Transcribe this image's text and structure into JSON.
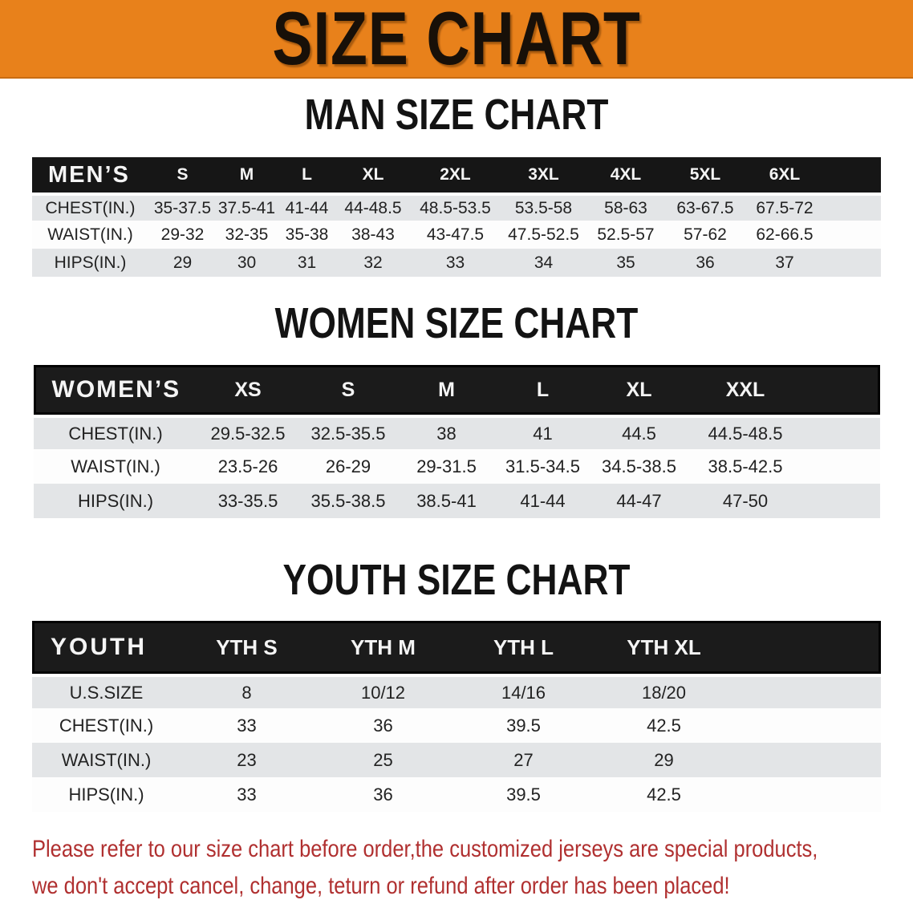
{
  "banner": {
    "title": "SIZE CHART",
    "bg_color": "#E8811B"
  },
  "sections": [
    {
      "heading": "MAN SIZE CHART",
      "table": {
        "corner": "MEN’S",
        "columns": [
          "S",
          "M",
          "L",
          "XL",
          "2XL",
          "3XL",
          "4XL",
          "5XL",
          "6XL"
        ],
        "rows": [
          {
            "label": "CHEST(IN.)",
            "values": [
              "35-37.5",
              "37.5-41",
              "41-44",
              "44-48.5",
              "48.5-53.5",
              "53.5-58",
              "58-63",
              "63-67.5",
              "67.5-72"
            ]
          },
          {
            "label": "WAIST(IN.)",
            "values": [
              "29-32",
              "32-35",
              "35-38",
              "38-43",
              "43-47.5",
              "47.5-52.5",
              "52.5-57",
              "57-62",
              "62-66.5"
            ]
          },
          {
            "label": "HIPS(IN.)",
            "values": [
              "29",
              "30",
              "31",
              "32",
              "33",
              "34",
              "35",
              "36",
              "37"
            ]
          }
        ]
      }
    },
    {
      "heading": "WOMEN SIZE CHART",
      "table": {
        "corner": "WOMEN’S",
        "columns": [
          "XS",
          "S",
          "M",
          "L",
          "XL",
          "XXL"
        ],
        "rows": [
          {
            "label": "CHEST(IN.)",
            "values": [
              "29.5-32.5",
              "32.5-35.5",
              "38",
              "41",
              "44.5",
              "44.5-48.5"
            ]
          },
          {
            "label": "WAIST(IN.)",
            "values": [
              "23.5-26",
              "26-29",
              "29-31.5",
              "31.5-34.5",
              "34.5-38.5",
              "38.5-42.5"
            ]
          },
          {
            "label": "HIPS(IN.)",
            "values": [
              "33-35.5",
              "35.5-38.5",
              "38.5-41",
              "41-44",
              "44-47",
              "47-50"
            ]
          }
        ]
      }
    },
    {
      "heading": "YOUTH SIZE CHART",
      "table": {
        "corner": "YOUTH",
        "columns": [
          "YTH S",
          "YTH M",
          "YTH L",
          "YTH XL"
        ],
        "rows": [
          {
            "label": "U.S.SIZE",
            "values": [
              "8",
              "10/12",
              "14/16",
              "18/20"
            ]
          },
          {
            "label": "CHEST(IN.)",
            "values": [
              "33",
              "36",
              "39.5",
              "42.5"
            ]
          },
          {
            "label": "WAIST(IN.)",
            "values": [
              "23",
              "25",
              "27",
              "29"
            ]
          },
          {
            "label": "HIPS(IN.)",
            "values": [
              "33",
              "36",
              "39.5",
              "42.5"
            ]
          }
        ]
      }
    }
  ],
  "disclaimer": {
    "line1": "Please refer to our size chart before order,the customized jerseys are special products,",
    "line2": "we don't accept cancel, change, teturn or refund after order has been placed!",
    "color": "#B03030"
  }
}
